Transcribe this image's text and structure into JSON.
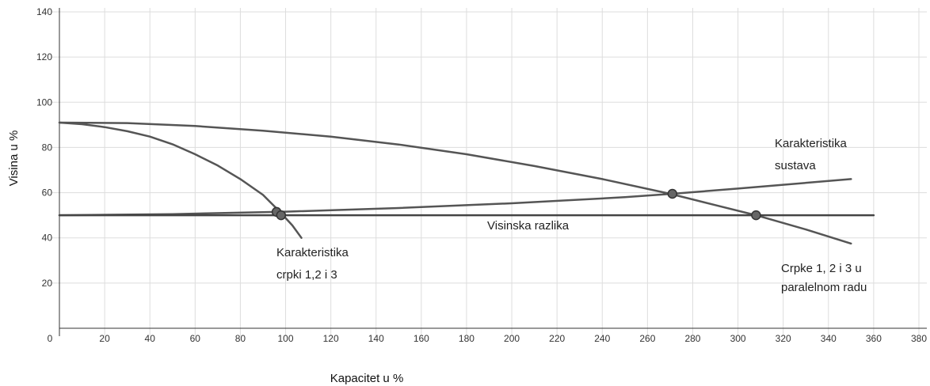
{
  "chart_data": {
    "type": "line",
    "xlabel": "Kapacitet u %",
    "ylabel": "Visina u %",
    "xlim": [
      0,
      380
    ],
    "ylim": [
      0,
      140
    ],
    "xticks": [
      0,
      20,
      40,
      60,
      80,
      100,
      120,
      140,
      160,
      180,
      200,
      220,
      240,
      260,
      280,
      300,
      320,
      340,
      360,
      380
    ],
    "yticks": [
      20,
      40,
      60,
      80,
      100,
      120,
      140
    ],
    "grid": true,
    "legend": "none",
    "series": [
      {
        "name": "Karakteristika crpki 1,2 i 3",
        "color": "#555555",
        "x": [
          0,
          10,
          20,
          30,
          40,
          50,
          60,
          70,
          80,
          90,
          97,
          103,
          107
        ],
        "y": [
          91,
          90.3,
          89,
          87.2,
          84.8,
          81.4,
          77,
          72,
          66,
          59,
          52,
          45.5,
          40
        ]
      },
      {
        "name": "Crpke 1, 2 i 3 u paralelnom radu",
        "color": "#555555",
        "x": [
          0,
          30,
          60,
          90,
          120,
          150,
          180,
          210,
          240,
          270,
          290,
          308,
          330,
          350
        ],
        "y": [
          91,
          90.8,
          89.5,
          87.4,
          84.8,
          81.3,
          77,
          71.8,
          66,
          59.5,
          54.5,
          50,
          43.7,
          37.5
        ]
      },
      {
        "name": "Karakteristika sustava",
        "color": "#555555",
        "x": [
          0,
          50,
          100,
          150,
          200,
          250,
          271,
          300,
          350
        ],
        "y": [
          50,
          50.5,
          51.6,
          53.2,
          55.3,
          58,
          59.5,
          61.8,
          66
        ]
      },
      {
        "name": "Visinska razlika",
        "color": "#444444",
        "x": [
          0,
          360
        ],
        "y": [
          50,
          50
        ]
      }
    ],
    "points": [
      {
        "x": 96,
        "y": 51.5
      },
      {
        "x": 98,
        "y": 50
      },
      {
        "x": 271,
        "y": 59.5
      },
      {
        "x": 308,
        "y": 50
      }
    ],
    "annotations": {
      "crpke_line1": "Karakteristika",
      "crpke_line2": "crpki 1,2 i 3",
      "paralelno_line1": "Crpke 1, 2 i 3 u",
      "paralelno_line2": "paralelnom radu",
      "sustav_line1": "Karakteristika",
      "sustav_line2": "sustava",
      "razlika": "Visinska razlika"
    }
  }
}
